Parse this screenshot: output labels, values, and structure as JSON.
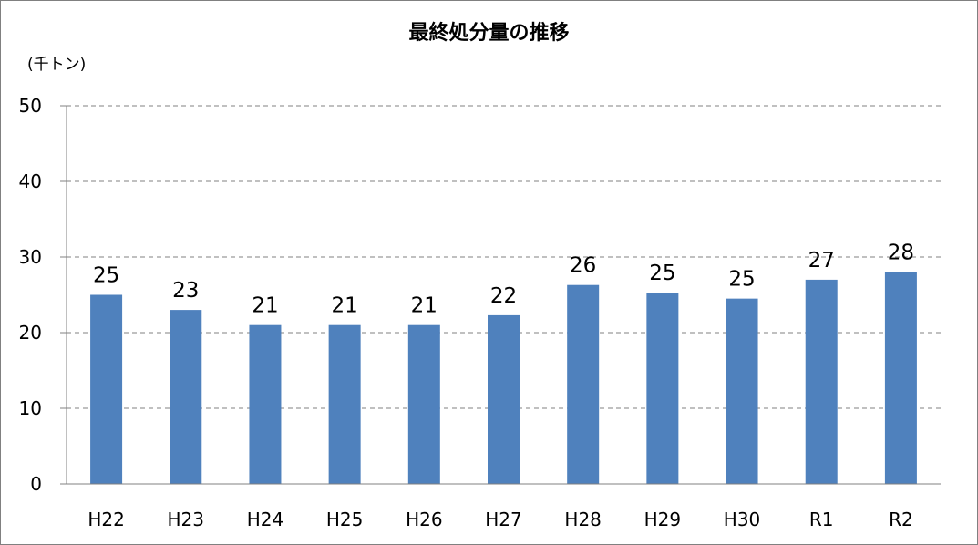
{
  "chart_data": {
    "type": "bar",
    "title": "最終処分量の推移",
    "unit_label": "(千トン)",
    "categories": [
      "H22",
      "H23",
      "H24",
      "H25",
      "H26",
      "H27",
      "H28",
      "H29",
      "H30",
      "R1",
      "R2"
    ],
    "values": [
      25,
      23,
      21,
      21,
      21,
      22.3,
      26.3,
      25.3,
      24.5,
      27,
      28
    ],
    "data_labels": [
      "25",
      "23",
      "21",
      "21",
      "21",
      "22",
      "26",
      "25",
      "25",
      "27",
      "28"
    ],
    "ylim": [
      0,
      50
    ],
    "yticks": [
      0,
      10,
      20,
      30,
      40,
      50
    ],
    "grid": true,
    "gridline_style": "dashed",
    "bar_color": "#4f81bd",
    "legend": "none"
  }
}
